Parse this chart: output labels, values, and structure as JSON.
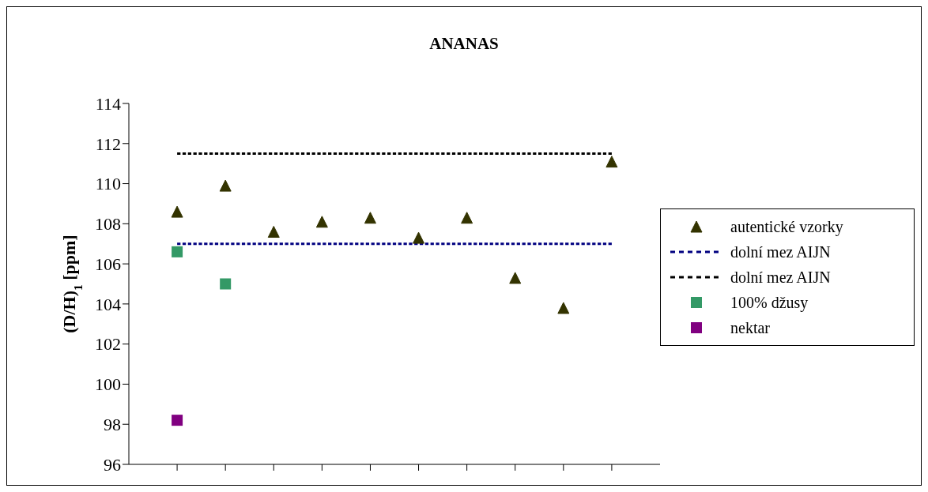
{
  "chart_data": {
    "type": "scatter",
    "title": "ANANAS",
    "ylabel": "(D/H)$_{1}$ [ppm]",
    "categories": [
      null,
      null,
      null,
      null,
      null,
      null,
      null,
      null,
      null,
      null
    ],
    "ylim": [
      96,
      114
    ],
    "yticks": [
      96,
      98,
      100,
      102,
      104,
      106,
      108,
      110,
      112,
      114
    ],
    "tick_labels": "y",
    "legend": "right",
    "series": [
      {
        "name": "autentické vzorky",
        "marker": "triangle",
        "color": "#333300",
        "values": [
          108.6,
          109.9,
          107.6,
          108.1,
          108.3,
          107.3,
          108.3,
          105.3,
          103.8,
          111.1
        ]
      },
      {
        "name": "dolní mez AIJN",
        "type": "line",
        "line_style": "dashed",
        "marker": "none",
        "color": "#000080",
        "values": [
          107,
          107,
          107,
          107,
          107,
          107,
          107,
          107,
          107,
          107
        ]
      },
      {
        "name": "dolní mez AIJN",
        "type": "line",
        "line_style": "dashed",
        "marker": "none",
        "color": "#000000",
        "values": [
          111.5,
          111.5,
          111.5,
          111.5,
          111.5,
          111.5,
          111.5,
          111.5,
          111.5,
          111.5
        ]
      },
      {
        "name": "100% džusy",
        "marker": "square",
        "color": "#339966",
        "values": [
          106.6,
          105,
          null,
          null,
          null,
          null,
          null,
          null,
          null,
          null
        ]
      },
      {
        "name": "nektar",
        "marker": "square",
        "color": "#800080",
        "values": [
          98.2,
          null,
          null,
          null,
          null,
          null,
          null,
          null,
          null,
          null
        ]
      }
    ]
  }
}
